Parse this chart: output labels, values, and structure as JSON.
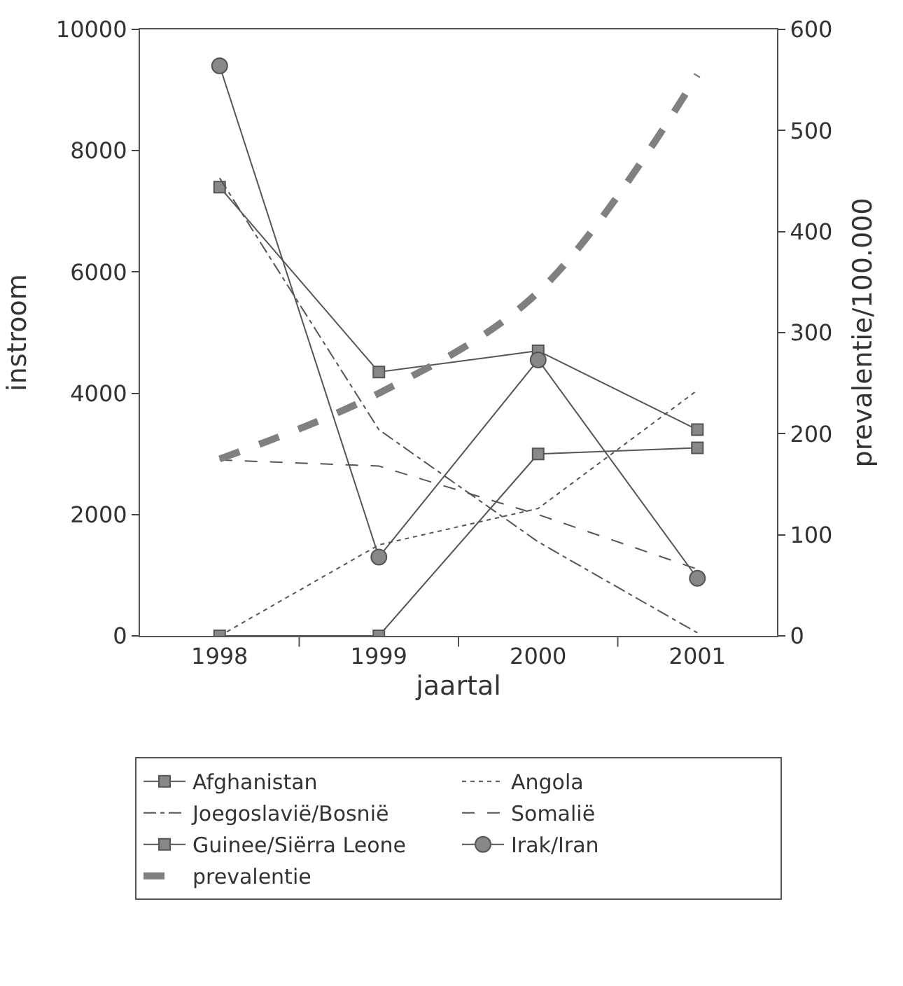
{
  "chart_data": {
    "type": "line",
    "xlabel": "jaartal",
    "ylabel": "instroom",
    "y2label": "prevalentie/100.000",
    "categories": [
      "1998",
      "1999",
      "2000",
      "2001"
    ],
    "series": [
      {
        "name": "Afghanistan",
        "color": "#555555",
        "values": [
          7400,
          4350,
          4700,
          3400
        ],
        "marker": "square",
        "line_style": "solid"
      },
      {
        "name": "Angola",
        "color": "#555555",
        "values": [
          0,
          1500,
          2100,
          4050
        ],
        "marker": "none",
        "line_style": "dotted"
      },
      {
        "name": "Joegoslavië/Bosnië",
        "color": "#555555",
        "values": [
          7550,
          3400,
          1550,
          50
        ],
        "marker": "none",
        "line_style": "dashdot"
      },
      {
        "name": "Somalië",
        "color": "#555555",
        "values": [
          2900,
          2800,
          2000,
          1100
        ],
        "marker": "none",
        "line_style": "dashed"
      },
      {
        "name": "Guinee/Siërra Leone",
        "color": "#555555",
        "values": [
          0,
          0,
          3000,
          3100
        ],
        "marker": "square",
        "line_style": "solid"
      },
      {
        "name": "Irak/Iran",
        "color": "#555555",
        "values": [
          9400,
          1300,
          4550,
          950
        ],
        "marker": "circle",
        "line_style": "solid"
      },
      {
        "name": "prevalentie",
        "color": "#808080",
        "values": [
          175,
          240,
          340,
          555
        ],
        "marker": "none",
        "line_style": "thickdashed",
        "axis": "y2"
      }
    ],
    "ylim": [
      0,
      10000
    ],
    "yticks": [
      0,
      2000,
      4000,
      6000,
      8000,
      10000
    ],
    "y2lim": [
      0,
      600
    ],
    "y2ticks": [
      0,
      100,
      200,
      300,
      400,
      500,
      600
    ],
    "legend": "bottom"
  }
}
